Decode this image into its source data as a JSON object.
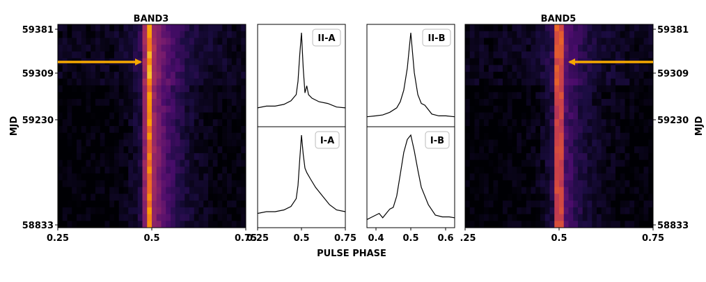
{
  "chart_data": [
    {
      "type": "heatmap",
      "title": "BAND3",
      "ylabel": "MJD",
      "x_range": [
        0.25,
        0.75
      ],
      "x_ticks": [
        "0.25",
        "0.5",
        "0.75"
      ],
      "y_range": [
        58833,
        59381
      ],
      "y_ticks": [
        "59381",
        "59309",
        "59230",
        "58833"
      ],
      "colormap": "inferno",
      "peak_phase": 0.49,
      "annotation": {
        "type": "arrow",
        "mjd": 59309,
        "direction": "right"
      }
    },
    {
      "type": "line",
      "label": "II-A",
      "x_range": [
        0.25,
        0.75
      ],
      "x_ticks": [],
      "x": [
        0.25,
        0.3,
        0.35,
        0.4,
        0.44,
        0.47,
        0.48,
        0.49,
        0.5,
        0.51,
        0.52,
        0.53,
        0.54,
        0.56,
        0.6,
        0.65,
        0.7,
        0.75
      ],
      "y": [
        0.15,
        0.17,
        0.17,
        0.19,
        0.23,
        0.3,
        0.45,
        0.75,
        1.0,
        0.6,
        0.32,
        0.4,
        0.3,
        0.26,
        0.22,
        0.2,
        0.16,
        0.15
      ]
    },
    {
      "type": "line",
      "label": "I-A",
      "x_range": [
        0.25,
        0.75
      ],
      "x_ticks": [
        "0.25",
        "0.5",
        "0.75"
      ],
      "x": [
        0.25,
        0.3,
        0.35,
        0.4,
        0.44,
        0.47,
        0.48,
        0.49,
        0.5,
        0.51,
        0.52,
        0.53,
        0.55,
        0.58,
        0.62,
        0.66,
        0.7,
        0.75
      ],
      "y": [
        0.1,
        0.12,
        0.12,
        0.14,
        0.18,
        0.27,
        0.42,
        0.72,
        1.0,
        0.78,
        0.62,
        0.57,
        0.5,
        0.4,
        0.3,
        0.2,
        0.14,
        0.12
      ]
    },
    {
      "type": "line",
      "label": "II-B",
      "x_range": [
        0.375,
        0.625
      ],
      "x_ticks": [],
      "x": [
        0.375,
        0.4,
        0.42,
        0.44,
        0.46,
        0.47,
        0.48,
        0.49,
        0.5,
        0.51,
        0.52,
        0.53,
        0.54,
        0.56,
        0.58,
        0.6,
        0.625
      ],
      "y": [
        0.05,
        0.06,
        0.07,
        0.1,
        0.15,
        0.22,
        0.35,
        0.6,
        1.0,
        0.55,
        0.3,
        0.2,
        0.18,
        0.08,
        0.06,
        0.06,
        0.05
      ]
    },
    {
      "type": "line",
      "label": "I-B",
      "x_range": [
        0.375,
        0.625
      ],
      "x_ticks": [
        "0.4",
        "0.5",
        "0.6"
      ],
      "x": [
        0.375,
        0.39,
        0.41,
        0.42,
        0.43,
        0.44,
        0.45,
        0.46,
        0.47,
        0.48,
        0.49,
        0.5,
        0.51,
        0.52,
        0.53,
        0.55,
        0.57,
        0.59,
        0.61,
        0.625
      ],
      "y": [
        0.03,
        0.06,
        0.1,
        0.05,
        0.1,
        0.15,
        0.17,
        0.3,
        0.55,
        0.8,
        0.95,
        1.0,
        0.82,
        0.6,
        0.4,
        0.2,
        0.08,
        0.06,
        0.06,
        0.05
      ]
    },
    {
      "type": "heatmap",
      "title": "BAND5",
      "ylabel": "MJD",
      "x_range": [
        0.25,
        0.75
      ],
      "x_ticks": [
        ".25",
        "0.5",
        "0.75"
      ],
      "y_range": [
        58833,
        59381
      ],
      "y_ticks": [
        "59381",
        "59309",
        "59230",
        "58833"
      ],
      "colormap": "inferno",
      "peak_phase": 0.5,
      "annotation": {
        "type": "arrow",
        "mjd": 59309,
        "direction": "left"
      }
    }
  ],
  "xlabel": "PULSE PHASE",
  "colors": {
    "arrow": "#f5a800",
    "background": "#ffffff"
  }
}
